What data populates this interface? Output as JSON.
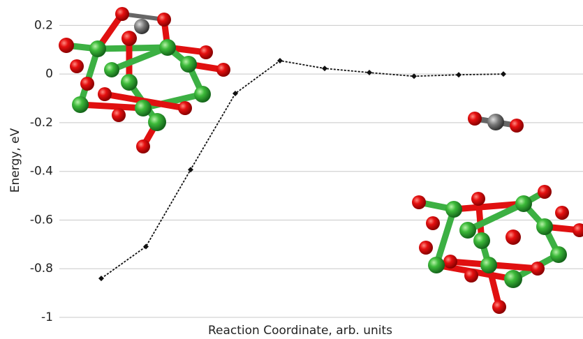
{
  "chart_data": {
    "type": "line",
    "y_label": "Energy, eV",
    "x_label": "Reaction Coordinate, arb. units",
    "categories": [
      null,
      null,
      null,
      null,
      null,
      null,
      null,
      null,
      null,
      null
    ],
    "series": [
      {
        "name": "energy",
        "color": "#111111",
        "values": [
          -0.84,
          -0.709,
          -0.393,
          -0.08,
          0.055,
          0.023,
          0.006,
          -0.009,
          -0.003,
          0
        ]
      }
    ],
    "ylim": [
      -1,
      0.3
    ],
    "yticks": [
      -1,
      -0.8,
      -0.6,
      -0.4,
      -0.2,
      0,
      0.2
    ],
    "grid": true
  }
}
